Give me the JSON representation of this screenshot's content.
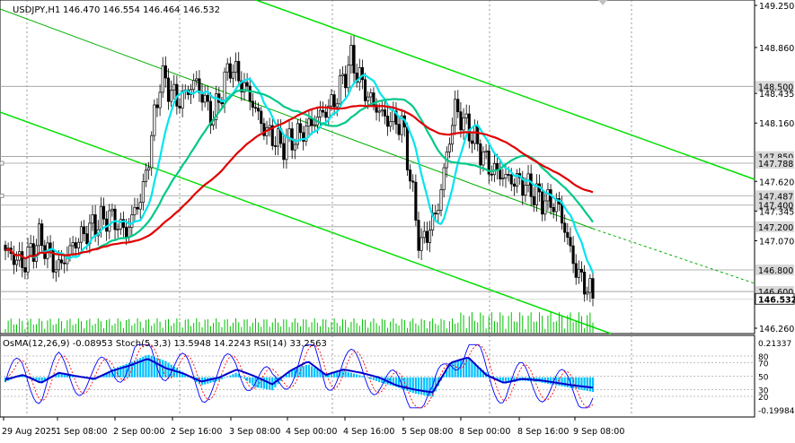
{
  "header": {
    "symbol": "USDJPY,H1",
    "ohlc": "146.470 146.554 146.464 146.532"
  },
  "indicator_header": "OsMA(12,26,9) -0.08953  Stoch(5,3,3) 13.5948 14.2243  RSI(14) 33.2563",
  "colors": {
    "background": "#ffffff",
    "candles": "#000000",
    "channel": "#00e000",
    "ma_fast": "#00e5ee",
    "ma_mid": "#00c888",
    "ma_slow": "#e00000",
    "osma": "#00bfff",
    "stoch_main": "#0000ff",
    "stoch_signal": "#ff0000",
    "rsi": "#0000cc"
  },
  "chart_data": {
    "type": "candlestick",
    "main_axis": {
      "min": 146.26,
      "max": 149.25,
      "ticks": [
        149.25,
        148.86,
        148.435,
        148.16,
        147.62,
        147.345,
        147.07,
        146.26
      ]
    },
    "price_levels": [
      {
        "label": "148.500",
        "value": 148.5
      },
      {
        "label": "147.850",
        "value": 147.85
      },
      {
        "label": "147.788",
        "value": 147.788
      },
      {
        "label": "147.487",
        "value": 147.487
      },
      {
        "label": "147.400",
        "value": 147.4
      },
      {
        "label": "147.200",
        "value": 147.2
      },
      {
        "label": "146.800",
        "value": 146.8
      },
      {
        "label": "146.600",
        "value": 146.6
      }
    ],
    "current_price": {
      "label": "146.532",
      "value": 146.532
    },
    "x_labels": [
      "29 Aug 2025",
      "1 Sep 08:00",
      "2 Sep 00:00",
      "2 Sep 16:00",
      "3 Sep 08:00",
      "4 Sep 00:00",
      "4 Sep 16:00",
      "5 Sep 08:00",
      "8 Sep 00:00",
      "8 Sep 16:00",
      "9 Sep 08:00"
    ],
    "close_anchors": [
      146.98,
      146.85,
      147.1,
      146.8,
      147.05,
      147.2,
      147.3,
      147.15,
      147.55,
      148.6,
      148.35,
      148.55,
      148.2,
      148.7,
      148.45,
      148.1,
      147.95,
      148.05,
      148.2,
      148.35,
      148.75,
      148.4,
      148.2,
      148.15,
      147.0,
      147.35,
      148.3,
      148.05,
      147.75,
      147.65,
      147.6,
      147.45,
      147.4,
      146.8,
      146.55
    ],
    "osc_axis": {
      "min": -0.19984,
      "max": 0.21337,
      "ticks": [
        {
          "label": "0.21337",
          "value": 0.21337
        },
        {
          "label": "-0.19984",
          "value": -0.19984
        }
      ],
      "levels": [
        {
          "label": "80",
          "value": 80
        },
        {
          "label": "70",
          "value": 70
        },
        {
          "label": "50",
          "value": 50
        },
        {
          "label": "30",
          "value": 30
        },
        {
          "label": "20",
          "value": 20
        }
      ]
    },
    "osma_anchors": [
      -0.03,
      0.02,
      -0.04,
      0.03,
      0.01,
      -0.02,
      0.05,
      0.09,
      0.14,
      0.1,
      0.03,
      -0.05,
      -0.02,
      0.03,
      -0.06,
      -0.08,
      0.04,
      0.08,
      0.02,
      0.04,
      0.01,
      -0.03,
      -0.06,
      -0.1,
      -0.12,
      0.09,
      0.12,
      0.03,
      -0.04,
      -0.02,
      -0.03,
      -0.05,
      -0.07,
      -0.09
    ],
    "rsi_anchors": [
      45,
      52,
      40,
      55,
      50,
      46,
      58,
      66,
      76,
      62,
      54,
      42,
      48,
      60,
      50,
      38,
      58,
      72,
      52,
      60,
      55,
      48,
      36,
      30,
      26,
      70,
      78,
      52,
      40,
      46,
      44,
      40,
      36,
      33
    ]
  }
}
